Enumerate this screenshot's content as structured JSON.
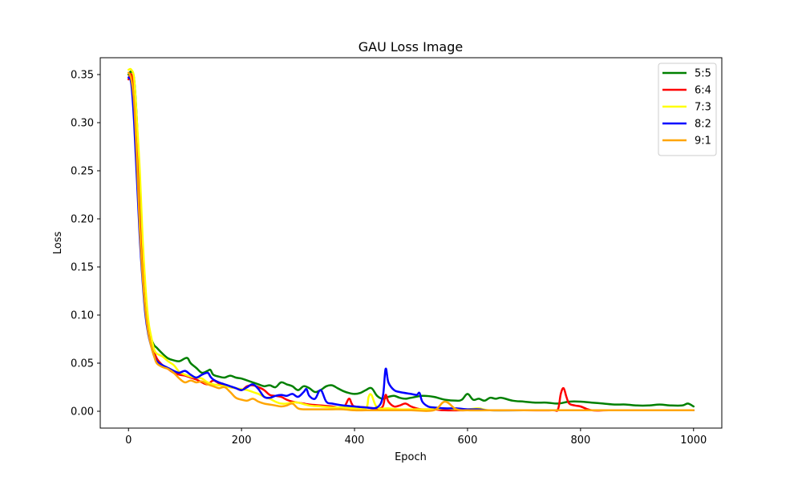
{
  "chart_data": {
    "type": "line",
    "title": "GAU Loss Image",
    "xlabel": "Epoch",
    "ylabel": "Loss",
    "xlim": [
      -50,
      1050
    ],
    "ylim": [
      -0.0175,
      0.3675
    ],
    "xticks": [
      0,
      200,
      400,
      600,
      800,
      1000
    ],
    "xtick_labels": [
      "0",
      "200",
      "400",
      "600",
      "800",
      "1000"
    ],
    "yticks": [
      0.0,
      0.05,
      0.1,
      0.15,
      0.2,
      0.25,
      0.3,
      0.35
    ],
    "ytick_labels": [
      "0.00",
      "0.05",
      "0.10",
      "0.15",
      "0.20",
      "0.25",
      "0.30",
      "0.35"
    ],
    "grid": false,
    "legend_position": "top-right",
    "series": [
      {
        "name": "5:5",
        "color": "#008000",
        "x": [
          0,
          5,
          10,
          15,
          20,
          25,
          30,
          35,
          40,
          45,
          50,
          60,
          70,
          80,
          90,
          100,
          105,
          110,
          120,
          130,
          140,
          145,
          150,
          160,
          170,
          180,
          190,
          200,
          210,
          220,
          230,
          240,
          250,
          260,
          270,
          280,
          290,
          300,
          310,
          320,
          330,
          340,
          350,
          360,
          370,
          380,
          390,
          400,
          410,
          420,
          430,
          440,
          450,
          460,
          470,
          480,
          490,
          500,
          520,
          540,
          560,
          580,
          590,
          600,
          610,
          620,
          630,
          640,
          650,
          660,
          680,
          700,
          720,
          740,
          760,
          780,
          800,
          820,
          840,
          860,
          880,
          900,
          920,
          940,
          960,
          980,
          990,
          1000
        ],
        "y": [
          0.35,
          0.353,
          0.345,
          0.3,
          0.23,
          0.165,
          0.12,
          0.09,
          0.076,
          0.069,
          0.066,
          0.06,
          0.055,
          0.053,
          0.052,
          0.055,
          0.055,
          0.05,
          0.045,
          0.04,
          0.042,
          0.043,
          0.038,
          0.036,
          0.035,
          0.037,
          0.035,
          0.034,
          0.032,
          0.03,
          0.028,
          0.026,
          0.027,
          0.025,
          0.03,
          0.028,
          0.026,
          0.022,
          0.026,
          0.024,
          0.02,
          0.022,
          0.026,
          0.027,
          0.024,
          0.021,
          0.019,
          0.018,
          0.019,
          0.022,
          0.024,
          0.016,
          0.013,
          0.015,
          0.016,
          0.014,
          0.013,
          0.014,
          0.016,
          0.015,
          0.012,
          0.011,
          0.012,
          0.018,
          0.012,
          0.013,
          0.011,
          0.014,
          0.013,
          0.014,
          0.011,
          0.01,
          0.009,
          0.009,
          0.008,
          0.01,
          0.01,
          0.009,
          0.008,
          0.007,
          0.007,
          0.006,
          0.006,
          0.007,
          0.006,
          0.006,
          0.008,
          0.005
        ]
      },
      {
        "name": "6:4",
        "color": "#ff0000",
        "x": [
          0,
          5,
          10,
          15,
          20,
          25,
          30,
          35,
          40,
          45,
          50,
          55,
          60,
          70,
          80,
          90,
          100,
          110,
          120,
          130,
          140,
          150,
          160,
          170,
          180,
          190,
          200,
          210,
          220,
          230,
          240,
          250,
          260,
          270,
          280,
          290,
          300,
          310,
          320,
          340,
          360,
          380,
          390,
          395,
          400,
          420,
          440,
          450,
          455,
          460,
          470,
          480,
          490,
          500,
          510,
          520,
          540,
          560,
          600,
          640,
          700,
          750,
          760,
          765,
          770,
          775,
          780,
          790,
          800,
          820,
          850,
          900,
          950,
          1000
        ],
        "y": [
          0.345,
          0.35,
          0.33,
          0.27,
          0.2,
          0.15,
          0.11,
          0.085,
          0.072,
          0.062,
          0.055,
          0.051,
          0.048,
          0.044,
          0.04,
          0.038,
          0.037,
          0.035,
          0.033,
          0.03,
          0.028,
          0.032,
          0.029,
          0.027,
          0.025,
          0.024,
          0.022,
          0.026,
          0.027,
          0.025,
          0.022,
          0.017,
          0.016,
          0.015,
          0.012,
          0.01,
          0.009,
          0.008,
          0.007,
          0.006,
          0.005,
          0.004,
          0.013,
          0.008,
          0.005,
          0.004,
          0.003,
          0.005,
          0.017,
          0.01,
          0.005,
          0.006,
          0.008,
          0.005,
          0.003,
          0.002,
          0.002,
          0.001,
          0.001,
          0.001,
          0.001,
          0.001,
          0.002,
          0.018,
          0.024,
          0.015,
          0.008,
          0.006,
          0.005,
          0.001,
          0.001,
          0.001,
          0.001,
          0.001
        ]
      },
      {
        "name": "7:3",
        "color": "#ffff00",
        "x": [
          0,
          5,
          10,
          15,
          20,
          25,
          30,
          35,
          40,
          45,
          50,
          60,
          70,
          80,
          90,
          100,
          110,
          120,
          130,
          140,
          150,
          160,
          170,
          180,
          190,
          200,
          210,
          220,
          230,
          240,
          250,
          260,
          270,
          280,
          290,
          300,
          320,
          340,
          360,
          380,
          400,
          420,
          425,
          430,
          440,
          460,
          480,
          500,
          520,
          540,
          560,
          580,
          600,
          620,
          640,
          700,
          800,
          900,
          1000
        ],
        "y": [
          0.355,
          0.355,
          0.345,
          0.3,
          0.25,
          0.18,
          0.13,
          0.095,
          0.078,
          0.065,
          0.06,
          0.057,
          0.052,
          0.048,
          0.041,
          0.038,
          0.036,
          0.035,
          0.034,
          0.03,
          0.028,
          0.027,
          0.026,
          0.025,
          0.024,
          0.023,
          0.022,
          0.02,
          0.018,
          0.015,
          0.013,
          0.01,
          0.008,
          0.008,
          0.009,
          0.009,
          0.006,
          0.005,
          0.004,
          0.004,
          0.003,
          0.003,
          0.015,
          0.017,
          0.004,
          0.003,
          0.002,
          0.002,
          0.002,
          0.002,
          0.003,
          0.002,
          0.002,
          0.003,
          0.001,
          0.001,
          0.001,
          0.001,
          0.001
        ]
      },
      {
        "name": "8:2",
        "color": "#0000ff",
        "x": [
          0,
          5,
          10,
          15,
          20,
          25,
          30,
          35,
          40,
          45,
          50,
          60,
          70,
          80,
          90,
          100,
          110,
          120,
          130,
          140,
          145,
          150,
          160,
          170,
          180,
          190,
          200,
          210,
          220,
          230,
          240,
          250,
          260,
          270,
          280,
          290,
          300,
          310,
          315,
          320,
          330,
          340,
          350,
          360,
          380,
          400,
          420,
          440,
          450,
          455,
          460,
          470,
          480,
          500,
          510,
          515,
          520,
          530,
          540,
          560,
          580,
          600,
          620,
          640,
          700,
          800,
          900,
          1000
        ],
        "y": [
          0.347,
          0.34,
          0.3,
          0.24,
          0.18,
          0.135,
          0.1,
          0.08,
          0.068,
          0.058,
          0.052,
          0.048,
          0.045,
          0.042,
          0.04,
          0.042,
          0.038,
          0.035,
          0.038,
          0.04,
          0.036,
          0.033,
          0.03,
          0.028,
          0.026,
          0.024,
          0.022,
          0.025,
          0.028,
          0.023,
          0.015,
          0.014,
          0.016,
          0.017,
          0.016,
          0.018,
          0.015,
          0.02,
          0.023,
          0.016,
          0.013,
          0.022,
          0.01,
          0.008,
          0.006,
          0.005,
          0.004,
          0.004,
          0.015,
          0.044,
          0.03,
          0.022,
          0.02,
          0.018,
          0.017,
          0.019,
          0.01,
          0.005,
          0.004,
          0.003,
          0.003,
          0.002,
          0.002,
          0.001,
          0.001,
          0.001,
          0.001,
          0.001
        ]
      },
      {
        "name": "9:1",
        "color": "#ffa500",
        "x": [
          0,
          5,
          10,
          15,
          20,
          25,
          30,
          35,
          40,
          45,
          50,
          60,
          70,
          80,
          90,
          100,
          110,
          120,
          130,
          140,
          150,
          160,
          170,
          180,
          190,
          200,
          210,
          220,
          230,
          240,
          250,
          260,
          270,
          280,
          290,
          300,
          310,
          320,
          340,
          360,
          380,
          400,
          420,
          440,
          460,
          480,
          500,
          540,
          560,
          580,
          600,
          640,
          700,
          800,
          900,
          1000
        ],
        "y": [
          0.352,
          0.345,
          0.32,
          0.26,
          0.19,
          0.14,
          0.105,
          0.082,
          0.068,
          0.058,
          0.05,
          0.046,
          0.044,
          0.04,
          0.034,
          0.03,
          0.032,
          0.03,
          0.031,
          0.028,
          0.026,
          0.024,
          0.025,
          0.02,
          0.014,
          0.012,
          0.011,
          0.013,
          0.01,
          0.008,
          0.007,
          0.006,
          0.005,
          0.006,
          0.008,
          0.003,
          0.002,
          0.002,
          0.002,
          0.002,
          0.002,
          0.001,
          0.001,
          0.001,
          0.001,
          0.001,
          0.001,
          0.001,
          0.01,
          0.002,
          0.001,
          0.001,
          0.001,
          0.001,
          0.001,
          0.001
        ]
      }
    ]
  }
}
